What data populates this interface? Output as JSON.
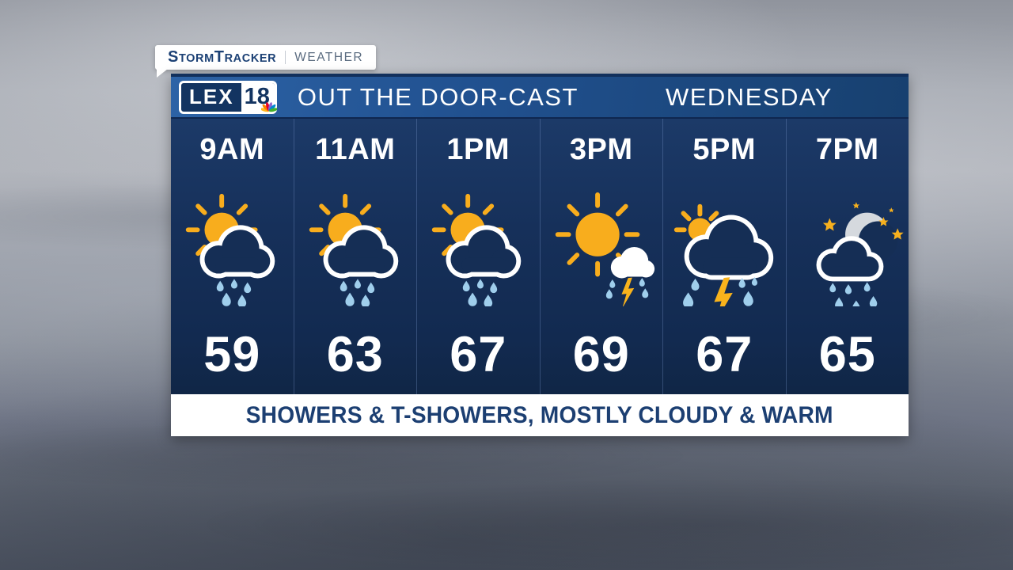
{
  "tab": {
    "brand_word1": "Storm",
    "brand_word2": "Tracker",
    "section": "WEATHER"
  },
  "header": {
    "logo_call": "LEX",
    "logo_channel": "18",
    "logo_peacock": "nbc-peacock-icon",
    "title": "OUT THE DOOR-CAST",
    "day": "WEDNESDAY"
  },
  "forecast": {
    "hours": [
      {
        "time": "9AM",
        "icon": "sun-shower-icon",
        "condition": "sun with showers",
        "temp": "59"
      },
      {
        "time": "11AM",
        "icon": "sun-shower-icon",
        "condition": "sun with showers",
        "temp": "63"
      },
      {
        "time": "1PM",
        "icon": "sun-shower-icon",
        "condition": "sun with showers",
        "temp": "67"
      },
      {
        "time": "3PM",
        "icon": "sun-tstorm-icon",
        "condition": "partly sunny thunderstorm",
        "temp": "69"
      },
      {
        "time": "5PM",
        "icon": "tstorm-icon",
        "condition": "thunderstorm",
        "temp": "67"
      },
      {
        "time": "7PM",
        "icon": "night-shower-icon",
        "condition": "night showers",
        "temp": "65"
      }
    ]
  },
  "banner": {
    "text": "SHOWERS & T-SHOWERS, MOSTLY CLOUDY & WARM"
  },
  "colors": {
    "sun": "#f8ad1d",
    "bolt": "#f9b31c",
    "raindrop": "#9fceec",
    "cloud_outline": "#ffffff",
    "cloud_fill": "#152e55",
    "moon": "#d5d9de",
    "star": "#f6b01e",
    "header_blue": "#215190",
    "panel_navy": "#152e55",
    "banner_text": "#1c3f72"
  }
}
